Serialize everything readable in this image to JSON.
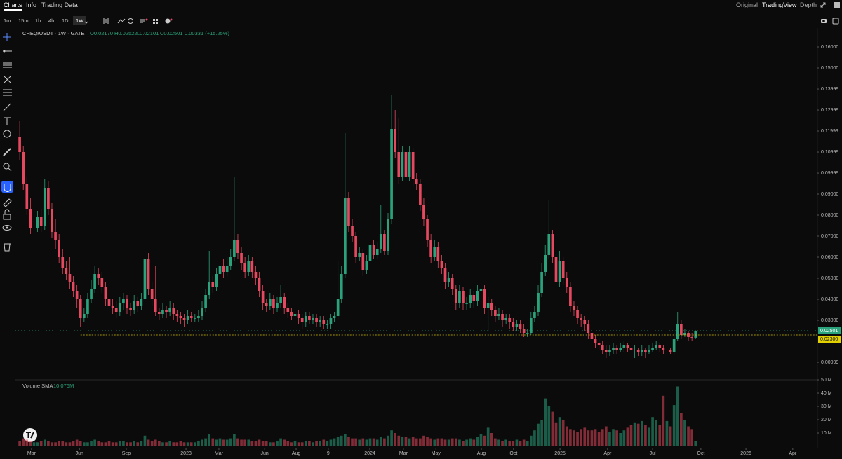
{
  "nav": [
    "Charts",
    "Info",
    "Trading Data"
  ],
  "views": [
    "Original",
    "TradingView",
    "Depth"
  ],
  "intervals": [
    "1m",
    "15m",
    "1h",
    "4h",
    "1D",
    "1W"
  ],
  "chart_data": {
    "type": "candlestick",
    "symbol": "CHEQ/USDT · 1W · GATE",
    "ohlc_labels": [
      "O0.02170",
      "H0.02522",
      "L0.02101",
      "C0.02501",
      "0.00331 (+15.25%)"
    ],
    "up_color": "#2aa37c",
    "down_color": "#e5485f",
    "candles": [
      [
        0.117,
        0.125,
        0.106,
        0.11
      ],
      [
        0.11,
        0.113,
        0.092,
        0.095
      ],
      [
        0.095,
        0.098,
        0.08,
        0.083
      ],
      [
        0.083,
        0.088,
        0.071,
        0.074
      ],
      [
        0.074,
        0.079,
        0.07,
        0.074
      ],
      [
        0.074,
        0.082,
        0.072,
        0.079
      ],
      [
        0.079,
        0.083,
        0.072,
        0.075
      ],
      [
        0.075,
        0.097,
        0.073,
        0.093
      ],
      [
        0.093,
        0.096,
        0.08,
        0.083
      ],
      [
        0.083,
        0.086,
        0.069,
        0.072
      ],
      [
        0.072,
        0.078,
        0.064,
        0.068
      ],
      [
        0.068,
        0.071,
        0.057,
        0.06
      ],
      [
        0.06,
        0.064,
        0.052,
        0.055
      ],
      [
        0.055,
        0.058,
        0.049,
        0.052
      ],
      [
        0.052,
        0.06,
        0.045,
        0.048
      ],
      [
        0.048,
        0.051,
        0.041,
        0.044
      ],
      [
        0.044,
        0.047,
        0.036,
        0.04
      ],
      [
        0.04,
        0.042,
        0.027,
        0.031
      ],
      [
        0.031,
        0.036,
        0.029,
        0.033
      ],
      [
        0.033,
        0.043,
        0.031,
        0.04
      ],
      [
        0.04,
        0.049,
        0.038,
        0.045
      ],
      [
        0.045,
        0.056,
        0.043,
        0.052
      ],
      [
        0.052,
        0.055,
        0.047,
        0.05
      ],
      [
        0.05,
        0.053,
        0.043,
        0.046
      ],
      [
        0.046,
        0.048,
        0.037,
        0.04
      ],
      [
        0.04,
        0.043,
        0.034,
        0.037
      ],
      [
        0.037,
        0.04,
        0.033,
        0.036
      ],
      [
        0.036,
        0.039,
        0.031,
        0.034
      ],
      [
        0.034,
        0.041,
        0.032,
        0.038
      ],
      [
        0.038,
        0.043,
        0.035,
        0.04
      ],
      [
        0.04,
        0.042,
        0.033,
        0.036
      ],
      [
        0.036,
        0.038,
        0.032,
        0.035
      ],
      [
        0.035,
        0.042,
        0.033,
        0.039
      ],
      [
        0.039,
        0.041,
        0.034,
        0.037
      ],
      [
        0.037,
        0.043,
        0.035,
        0.04
      ],
      [
        0.04,
        0.097,
        0.038,
        0.059
      ],
      [
        0.059,
        0.062,
        0.042,
        0.045
      ],
      [
        0.045,
        0.048,
        0.037,
        0.04
      ],
      [
        0.04,
        0.056,
        0.032,
        0.034
      ],
      [
        0.034,
        0.036,
        0.03,
        0.033
      ],
      [
        0.033,
        0.038,
        0.031,
        0.035
      ],
      [
        0.035,
        0.037,
        0.031,
        0.034
      ],
      [
        0.034,
        0.039,
        0.032,
        0.036
      ],
      [
        0.036,
        0.038,
        0.03,
        0.033
      ],
      [
        0.033,
        0.035,
        0.029,
        0.032
      ],
      [
        0.032,
        0.034,
        0.028,
        0.031
      ],
      [
        0.031,
        0.033,
        0.027,
        0.03
      ],
      [
        0.03,
        0.035,
        0.028,
        0.032
      ],
      [
        0.032,
        0.034,
        0.029,
        0.031
      ],
      [
        0.031,
        0.033,
        0.029,
        0.031
      ],
      [
        0.031,
        0.035,
        0.029,
        0.032
      ],
      [
        0.032,
        0.039,
        0.03,
        0.036
      ],
      [
        0.036,
        0.045,
        0.034,
        0.042
      ],
      [
        0.042,
        0.063,
        0.04,
        0.048
      ],
      [
        0.048,
        0.051,
        0.043,
        0.046
      ],
      [
        0.046,
        0.055,
        0.044,
        0.052
      ],
      [
        0.052,
        0.06,
        0.05,
        0.056
      ],
      [
        0.056,
        0.059,
        0.05,
        0.053
      ],
      [
        0.053,
        0.06,
        0.051,
        0.056
      ],
      [
        0.056,
        0.064,
        0.054,
        0.06
      ],
      [
        0.06,
        0.098,
        0.058,
        0.068
      ],
      [
        0.068,
        0.071,
        0.059,
        0.062
      ],
      [
        0.062,
        0.065,
        0.054,
        0.057
      ],
      [
        0.057,
        0.06,
        0.05,
        0.053
      ],
      [
        0.053,
        0.061,
        0.051,
        0.058
      ],
      [
        0.058,
        0.06,
        0.05,
        0.053
      ],
      [
        0.053,
        0.056,
        0.047,
        0.05
      ],
      [
        0.05,
        0.053,
        0.041,
        0.044
      ],
      [
        0.044,
        0.047,
        0.035,
        0.038
      ],
      [
        0.038,
        0.04,
        0.034,
        0.037
      ],
      [
        0.037,
        0.043,
        0.035,
        0.04
      ],
      [
        0.04,
        0.042,
        0.033,
        0.036
      ],
      [
        0.036,
        0.041,
        0.034,
        0.038
      ],
      [
        0.038,
        0.047,
        0.036,
        0.041
      ],
      [
        0.041,
        0.043,
        0.033,
        0.036
      ],
      [
        0.036,
        0.038,
        0.031,
        0.034
      ],
      [
        0.034,
        0.036,
        0.03,
        0.032
      ],
      [
        0.032,
        0.035,
        0.03,
        0.033
      ],
      [
        0.033,
        0.035,
        0.028,
        0.031
      ],
      [
        0.031,
        0.033,
        0.026,
        0.029
      ],
      [
        0.029,
        0.034,
        0.027,
        0.032
      ],
      [
        0.032,
        0.034,
        0.028,
        0.03
      ],
      [
        0.03,
        0.033,
        0.028,
        0.031
      ],
      [
        0.031,
        0.033,
        0.027,
        0.029
      ],
      [
        0.029,
        0.032,
        0.027,
        0.03
      ],
      [
        0.03,
        0.032,
        0.026,
        0.028
      ],
      [
        0.028,
        0.03,
        0.026,
        0.028
      ],
      [
        0.028,
        0.033,
        0.026,
        0.031
      ],
      [
        0.031,
        0.034,
        0.029,
        0.032
      ],
      [
        0.032,
        0.058,
        0.03,
        0.04
      ],
      [
        0.04,
        0.056,
        0.038,
        0.052
      ],
      [
        0.052,
        0.119,
        0.05,
        0.088
      ],
      [
        0.088,
        0.091,
        0.072,
        0.075
      ],
      [
        0.075,
        0.078,
        0.067,
        0.07
      ],
      [
        0.07,
        0.072,
        0.057,
        0.06
      ],
      [
        0.06,
        0.065,
        0.058,
        0.062
      ],
      [
        0.062,
        0.064,
        0.051,
        0.054
      ],
      [
        0.054,
        0.061,
        0.052,
        0.058
      ],
      [
        0.058,
        0.069,
        0.056,
        0.066
      ],
      [
        0.066,
        0.068,
        0.059,
        0.061
      ],
      [
        0.061,
        0.067,
        0.059,
        0.064
      ],
      [
        0.064,
        0.085,
        0.062,
        0.071
      ],
      [
        0.071,
        0.073,
        0.061,
        0.063
      ],
      [
        0.063,
        0.081,
        0.061,
        0.078
      ],
      [
        0.078,
        0.137,
        0.076,
        0.121
      ],
      [
        0.121,
        0.13,
        0.107,
        0.11
      ],
      [
        0.11,
        0.126,
        0.095,
        0.098
      ],
      [
        0.098,
        0.113,
        0.096,
        0.11
      ],
      [
        0.11,
        0.113,
        0.095,
        0.098
      ],
      [
        0.098,
        0.113,
        0.096,
        0.11
      ],
      [
        0.11,
        0.112,
        0.094,
        0.097
      ],
      [
        0.097,
        0.1,
        0.092,
        0.095
      ],
      [
        0.095,
        0.097,
        0.082,
        0.085
      ],
      [
        0.085,
        0.088,
        0.075,
        0.078
      ],
      [
        0.078,
        0.08,
        0.065,
        0.068
      ],
      [
        0.068,
        0.071,
        0.057,
        0.06
      ],
      [
        0.06,
        0.068,
        0.058,
        0.065
      ],
      [
        0.065,
        0.067,
        0.055,
        0.058
      ],
      [
        0.058,
        0.061,
        0.052,
        0.055
      ],
      [
        0.055,
        0.057,
        0.045,
        0.048
      ],
      [
        0.048,
        0.053,
        0.046,
        0.05
      ],
      [
        0.05,
        0.052,
        0.042,
        0.045
      ],
      [
        0.045,
        0.047,
        0.035,
        0.038
      ],
      [
        0.038,
        0.047,
        0.036,
        0.044
      ],
      [
        0.044,
        0.046,
        0.035,
        0.038
      ],
      [
        0.038,
        0.041,
        0.035,
        0.038
      ],
      [
        0.038,
        0.045,
        0.036,
        0.042
      ],
      [
        0.042,
        0.044,
        0.036,
        0.039
      ],
      [
        0.039,
        0.047,
        0.037,
        0.044
      ],
      [
        0.044,
        0.048,
        0.042,
        0.045
      ],
      [
        0.045,
        0.047,
        0.033,
        0.036
      ],
      [
        0.036,
        0.041,
        0.025,
        0.038
      ],
      [
        0.038,
        0.04,
        0.032,
        0.035
      ],
      [
        0.035,
        0.037,
        0.029,
        0.032
      ],
      [
        0.032,
        0.036,
        0.03,
        0.033
      ],
      [
        0.033,
        0.035,
        0.027,
        0.03
      ],
      [
        0.03,
        0.033,
        0.028,
        0.031
      ],
      [
        0.031,
        0.033,
        0.026,
        0.029
      ],
      [
        0.029,
        0.031,
        0.025,
        0.027
      ],
      [
        0.027,
        0.03,
        0.025,
        0.028
      ],
      [
        0.028,
        0.03,
        0.024,
        0.026
      ],
      [
        0.026,
        0.028,
        0.022,
        0.024
      ],
      [
        0.024,
        0.026,
        0.022,
        0.024
      ],
      [
        0.024,
        0.034,
        0.023,
        0.031
      ],
      [
        0.031,
        0.037,
        0.029,
        0.034
      ],
      [
        0.034,
        0.047,
        0.032,
        0.043
      ],
      [
        0.043,
        0.057,
        0.041,
        0.053
      ],
      [
        0.053,
        0.066,
        0.051,
        0.061
      ],
      [
        0.061,
        0.087,
        0.059,
        0.071
      ],
      [
        0.071,
        0.073,
        0.057,
        0.06
      ],
      [
        0.06,
        0.062,
        0.045,
        0.048
      ],
      [
        0.048,
        0.063,
        0.046,
        0.058
      ],
      [
        0.058,
        0.06,
        0.047,
        0.05
      ],
      [
        0.05,
        0.053,
        0.043,
        0.046
      ],
      [
        0.046,
        0.048,
        0.034,
        0.037
      ],
      [
        0.037,
        0.039,
        0.032,
        0.035
      ],
      [
        0.035,
        0.037,
        0.028,
        0.031
      ],
      [
        0.031,
        0.033,
        0.027,
        0.03
      ],
      [
        0.03,
        0.032,
        0.025,
        0.028
      ],
      [
        0.028,
        0.03,
        0.021,
        0.024
      ],
      [
        0.024,
        0.026,
        0.018,
        0.021
      ],
      [
        0.021,
        0.023,
        0.017,
        0.019
      ],
      [
        0.019,
        0.021,
        0.016,
        0.018
      ],
      [
        0.018,
        0.02,
        0.014,
        0.016
      ],
      [
        0.016,
        0.018,
        0.012,
        0.015
      ],
      [
        0.015,
        0.018,
        0.013,
        0.016
      ],
      [
        0.016,
        0.019,
        0.014,
        0.017
      ],
      [
        0.017,
        0.018,
        0.014,
        0.016
      ],
      [
        0.016,
        0.019,
        0.015,
        0.017
      ],
      [
        0.017,
        0.02,
        0.015,
        0.018
      ],
      [
        0.018,
        0.019,
        0.015,
        0.017
      ],
      [
        0.017,
        0.018,
        0.014,
        0.016
      ],
      [
        0.016,
        0.018,
        0.012,
        0.016
      ],
      [
        0.016,
        0.017,
        0.013,
        0.015
      ],
      [
        0.015,
        0.018,
        0.013,
        0.016
      ],
      [
        0.016,
        0.017,
        0.012,
        0.015
      ],
      [
        0.015,
        0.018,
        0.014,
        0.016
      ],
      [
        0.016,
        0.019,
        0.015,
        0.017
      ],
      [
        0.017,
        0.02,
        0.016,
        0.018
      ],
      [
        0.018,
        0.019,
        0.015,
        0.017
      ],
      [
        0.017,
        0.018,
        0.014,
        0.016
      ],
      [
        0.016,
        0.017,
        0.014,
        0.016
      ],
      [
        0.016,
        0.017,
        0.014,
        0.015
      ],
      [
        0.015,
        0.024,
        0.014,
        0.021
      ],
      [
        0.021,
        0.034,
        0.02,
        0.028
      ],
      [
        0.028,
        0.03,
        0.021,
        0.023
      ],
      [
        0.023,
        0.026,
        0.022,
        0.024
      ],
      [
        0.024,
        0.025,
        0.02,
        0.022
      ],
      [
        0.022,
        0.024,
        0.02,
        0.0217
      ],
      [
        0.0217,
        0.02522,
        0.02101,
        0.02501
      ]
    ],
    "volume": [
      4,
      6,
      5,
      4,
      3,
      3,
      4,
      5,
      4,
      3,
      3,
      4,
      4,
      3,
      3,
      4,
      5,
      4,
      3,
      3,
      4,
      5,
      4,
      3,
      3,
      4,
      3,
      3,
      4,
      4,
      3,
      3,
      4,
      3,
      4,
      8,
      5,
      4,
      5,
      4,
      3,
      3,
      4,
      3,
      3,
      4,
      3,
      3,
      3,
      3,
      4,
      5,
      6,
      9,
      6,
      5,
      6,
      5,
      5,
      6,
      9,
      6,
      5,
      5,
      5,
      4,
      4,
      5,
      4,
      4,
      3,
      3,
      4,
      6,
      5,
      4,
      3,
      4,
      3,
      3,
      4,
      4,
      3,
      4,
      4,
      5,
      4,
      5,
      6,
      7,
      8,
      9,
      7,
      6,
      6,
      5,
      6,
      5,
      6,
      6,
      5,
      7,
      6,
      8,
      12,
      10,
      8,
      7,
      7,
      6,
      7,
      6,
      6,
      8,
      7,
      6,
      5,
      6,
      6,
      5,
      5,
      6,
      6,
      5,
      4,
      5,
      6,
      5,
      7,
      9,
      8,
      14,
      10,
      6,
      5,
      4,
      5,
      4,
      4,
      5,
      4,
      5,
      4,
      8,
      12,
      17,
      20,
      36,
      30,
      26,
      18,
      22,
      20,
      15,
      13,
      12,
      11,
      13,
      14,
      12,
      12,
      13,
      11,
      13,
      15,
      11,
      13,
      12,
      10,
      12,
      14,
      16,
      18,
      17,
      19,
      16,
      14,
      22,
      20,
      16,
      38,
      19,
      15,
      31,
      45,
      25,
      20,
      15,
      13,
      4
    ],
    "volume_label": "Volume SMA",
    "volume_sma": "10.076M",
    "xlim": [
      -1.2,
      223.1
    ],
    "xticks": [
      {
        "value": 3.3,
        "label": "Mar"
      },
      {
        "value": 16.7,
        "label": "Jun"
      },
      {
        "value": 29.8,
        "label": "Sep"
      },
      {
        "value": 46.5,
        "label": "2023"
      },
      {
        "value": 55.7,
        "label": "Mar"
      },
      {
        "value": 68.5,
        "label": "Jun"
      },
      {
        "value": 77.3,
        "label": "Aug"
      },
      {
        "value": 86.3,
        "label": "9"
      },
      {
        "value": 97.9,
        "label": "2024"
      },
      {
        "value": 107.3,
        "label": "Mar"
      },
      {
        "value": 116.4,
        "label": "May"
      },
      {
        "value": 129.1,
        "label": "Aug"
      },
      {
        "value": 138.1,
        "label": "Oct"
      },
      {
        "value": 151.1,
        "label": "2025"
      },
      {
        "value": 164.4,
        "label": "Apr"
      },
      {
        "value": 177,
        "label": "Jul"
      },
      {
        "value": 190.5,
        "label": "Oct"
      },
      {
        "value": 203.1,
        "label": "2026"
      },
      {
        "value": 216.2,
        "label": "Apr"
      }
    ],
    "ylim": [
      0.002,
      0.169
    ],
    "yticks": [
      0.00999,
      {
        "value": 0.03,
        "label": "0.03000"
      },
      {
        "value": 0.04,
        "label": "0.04000"
      },
      {
        "value": 0.05,
        "label": "0.05000"
      },
      {
        "value": 0.06,
        "label": "0.06000"
      },
      {
        "value": 0.07,
        "label": "0.07000"
      },
      {
        "value": 0.08,
        "label": "0.08000"
      },
      {
        "value": 0.09,
        "label": "0.09000"
      },
      0.09999,
      0.10999,
      0.11999,
      0.12999,
      0.13999,
      {
        "value": 0.15,
        "label": "0.15000"
      },
      {
        "value": 0.16,
        "label": "0.16000"
      }
    ],
    "volume_ylim": [
      0,
      50
    ],
    "volume_yticks": [
      {
        "value": 10,
        "label": "10 M"
      },
      {
        "value": 20,
        "label": "20 M"
      },
      {
        "value": 30,
        "label": "30 M"
      },
      {
        "value": 40,
        "label": "40 M"
      },
      {
        "value": 50,
        "label": "50 M"
      }
    ],
    "last_price": 0.02501,
    "price_line": {
      "value": 0.023,
      "label": "0.02300"
    },
    "grid": false
  }
}
